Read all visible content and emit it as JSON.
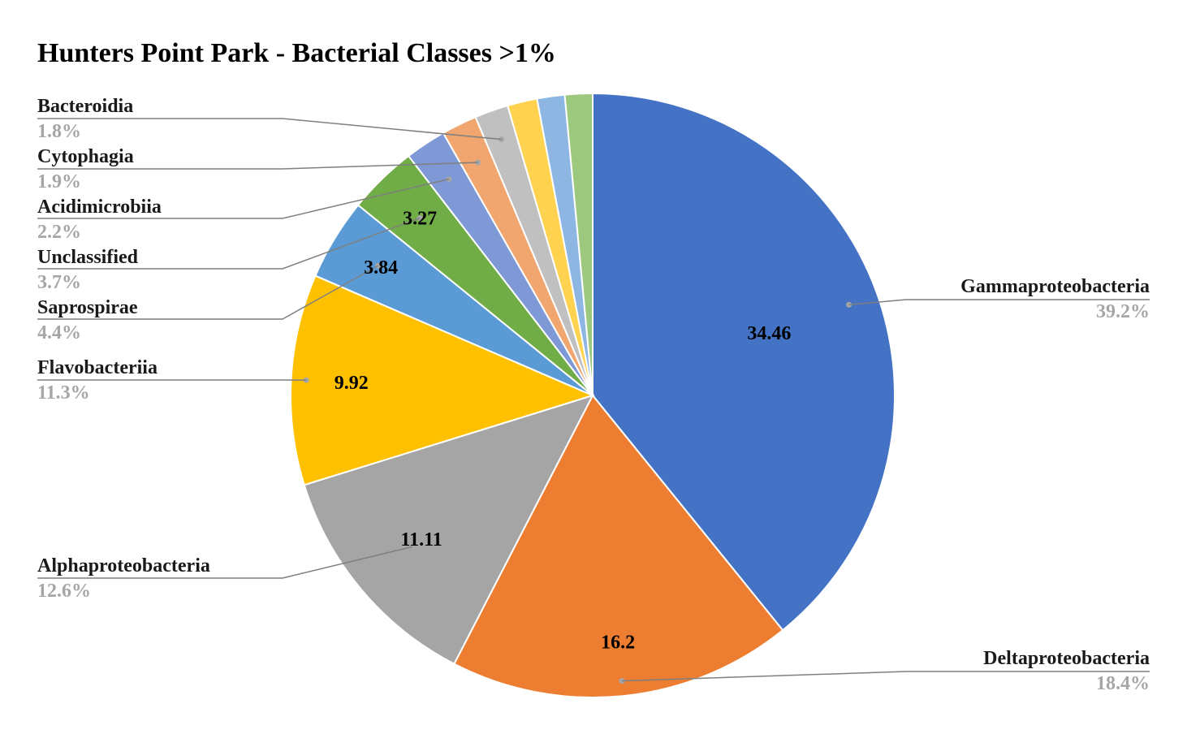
{
  "chart_data": {
    "type": "pie",
    "title": "Hunters Point Park - Bacterial Classes >1%",
    "slices": [
      {
        "name": "Gammaproteobacteria",
        "value": 34.46,
        "percent_label": "39.2%",
        "value_label": "34.46",
        "color": "#4472C4"
      },
      {
        "name": "Deltaproteobacteria",
        "value": 16.2,
        "percent_label": "18.4%",
        "value_label": "16.2",
        "color": "#ED7D31"
      },
      {
        "name": "Alphaproteobacteria",
        "value": 11.11,
        "percent_label": "12.6%",
        "value_label": "11.11",
        "color": "#A5A5A5"
      },
      {
        "name": "Flavobacteriia",
        "value": 9.92,
        "percent_label": "11.3%",
        "value_label": "9.92",
        "color": "#FFC000"
      },
      {
        "name": "Saprospirae",
        "value": 3.84,
        "percent_label": "4.4%",
        "value_label": "3.84",
        "color": "#5B9BD5"
      },
      {
        "name": "Unclassified",
        "value": 3.27,
        "percent_label": "3.7%",
        "value_label": "3.27",
        "color": "#70AD47"
      },
      {
        "name": "Acidimicrobiia",
        "value": 1.93,
        "percent_label": "2.2%",
        "value_label": "",
        "color": "#7E99D6"
      },
      {
        "name": "Cytophagia",
        "value": 1.67,
        "percent_label": "1.9%",
        "value_label": "",
        "color": "#F1A56F"
      },
      {
        "name": "Bacteroidia",
        "value": 1.58,
        "percent_label": "1.8%",
        "value_label": "",
        "color": "#C0C0C0"
      },
      {
        "name": "",
        "value": 1.4,
        "percent_label": "",
        "value_label": "",
        "color": "#FFD34F"
      },
      {
        "name": "",
        "value": 1.3,
        "percent_label": "",
        "value_label": "",
        "color": "#8DB7E2"
      },
      {
        "name": "",
        "value": 1.3,
        "percent_label": "",
        "value_label": "",
        "color": "#9DC97F"
      }
    ]
  }
}
